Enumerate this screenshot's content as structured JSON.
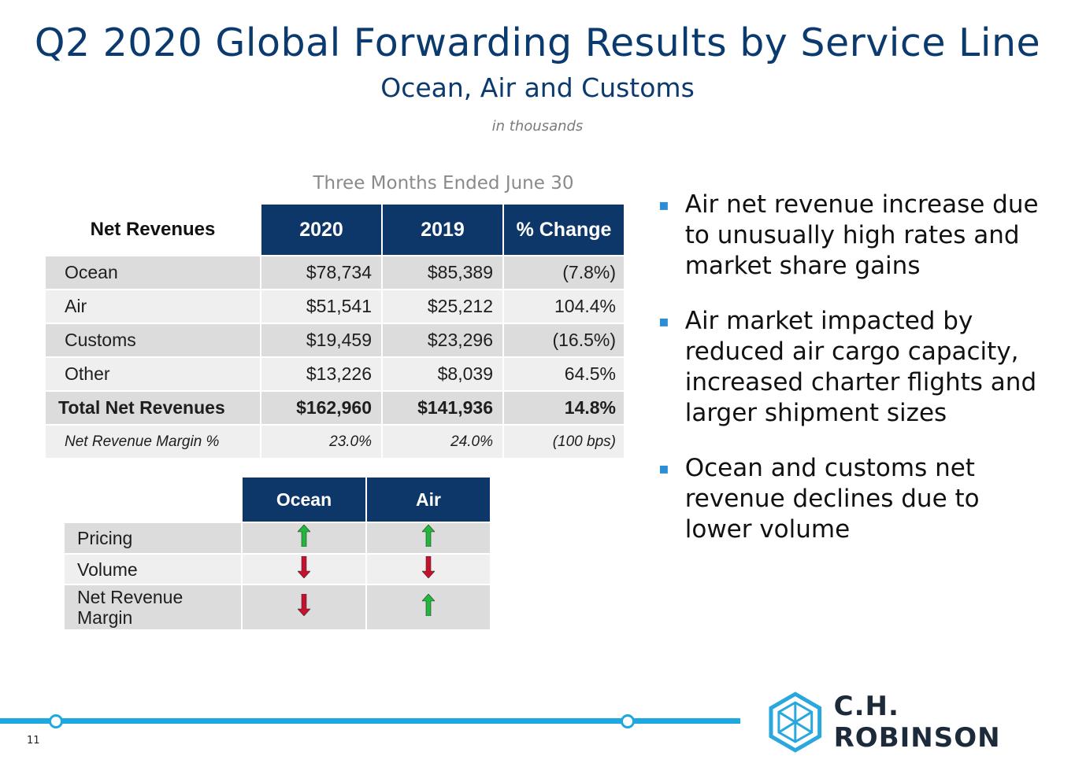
{
  "header": {
    "title": "Q2 2020 Global Forwarding Results by Service Line",
    "subtitle": "Ocean, Air and Customs",
    "units": "in thousands"
  },
  "revenue_table": {
    "period": "Three Months Ended June 30",
    "columns": [
      "Net Revenues",
      "2020",
      "2019",
      "% Change"
    ],
    "rows": [
      {
        "label": "Ocean",
        "y2020": "$78,734",
        "y2019": "$85,389",
        "change": "(7.8%)"
      },
      {
        "label": "Air",
        "y2020": "$51,541",
        "y2019": "$25,212",
        "change": "104.4%"
      },
      {
        "label": "Customs",
        "y2020": "$19,459",
        "y2019": "$23,296",
        "change": "(16.5%)"
      },
      {
        "label": "Other",
        "y2020": "$13,226",
        "y2019": "$8,039",
        "change": "64.5%"
      },
      {
        "label": "Total Net Revenues",
        "y2020": "$162,960",
        "y2019": "$141,936",
        "change": "14.8%"
      },
      {
        "label": "Net Revenue Margin %",
        "y2020": "23.0%",
        "y2019": "24.0%",
        "change": "(100 bps)"
      }
    ]
  },
  "indicator_table": {
    "columns": [
      "Ocean",
      "Air"
    ],
    "rows": [
      {
        "label": "Pricing",
        "ocean": "up",
        "air": "up"
      },
      {
        "label": "Volume",
        "ocean": "down",
        "air": "down"
      },
      {
        "label": "Net Revenue Margin",
        "ocean": "down",
        "air": "up"
      }
    ],
    "colors": {
      "up": "#1fb83a",
      "down": "#c8102e"
    }
  },
  "bullets": [
    "Air net revenue increase due to unusually high rates and market share gains",
    "Air market impacted by reduced air cargo capacity, increased charter flights and larger shipment sizes",
    "Ocean and customs net revenue declines due to lower volume"
  ],
  "footer": {
    "page_number": "11",
    "logo_text": "C.H. ROBINSON",
    "accent": "#1ea8e0"
  }
}
